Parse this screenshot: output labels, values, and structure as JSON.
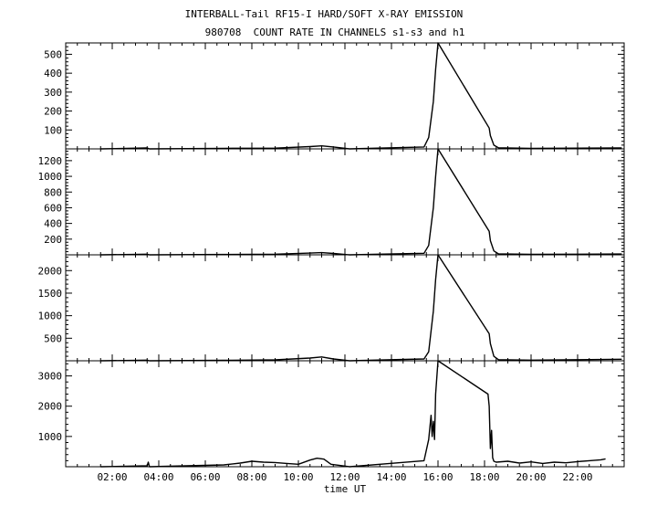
{
  "chart_data": {
    "type": "line",
    "title": "INTERBALL-Tail RF15-I HARD/SOFT X-RAY EMISSION",
    "subtitle": "980708  COUNT RATE IN CHANNELS s1-s3 and h1",
    "xlabel": "time UT",
    "x_unit": "hours UT",
    "xlim": [
      0,
      24
    ],
    "xticks": [
      2,
      4,
      6,
      8,
      10,
      12,
      14,
      16,
      18,
      20,
      22
    ],
    "xtick_labels": [
      "02:00",
      "04:00",
      "06:00",
      "08:00",
      "10:00",
      "12:00",
      "14:00",
      "16:00",
      "18:00",
      "20:00",
      "22:00"
    ],
    "grid": false,
    "panels": [
      {
        "name": "s1",
        "ylim": [
          0,
          560
        ],
        "yticks": [
          100,
          200,
          300,
          400,
          500
        ],
        "ytick_labels": [
          "100",
          "200",
          "300",
          "400",
          "500"
        ],
        "series": [
          {
            "x": [
              1.5,
              3.5,
              3.6,
              6.8,
              9.0,
              10.5,
              11.0,
              11.5,
              12.2,
              15.4,
              15.6,
              15.8,
              15.9,
              16.0,
              18.2,
              18.25,
              18.4,
              18.6,
              20.0,
              22.0,
              23.9
            ],
            "y": [
              0,
              5,
              0,
              3,
              4,
              12,
              16,
              10,
              0,
              10,
              60,
              250,
              420,
              560,
              110,
              70,
              20,
              6,
              3,
              4,
              5
            ]
          }
        ]
      },
      {
        "name": "s2",
        "ylim": [
          0,
          1350
        ],
        "yticks": [
          200,
          400,
          600,
          800,
          1000,
          1200
        ],
        "ytick_labels": [
          "200",
          "400",
          "600",
          "800",
          "1000",
          "1200"
        ],
        "series": [
          {
            "x": [
              1.5,
              3.5,
              3.6,
              6.8,
              9.0,
              10.5,
              11.0,
              11.5,
              12.2,
              15.4,
              15.6,
              15.8,
              15.9,
              16.0,
              18.2,
              18.25,
              18.4,
              18.6,
              20.0,
              22.0,
              23.9
            ],
            "y": [
              0,
              8,
              0,
              5,
              8,
              22,
              28,
              18,
              0,
              20,
              120,
              600,
              1000,
              1350,
              300,
              180,
              50,
              12,
              6,
              8,
              10
            ]
          }
        ]
      },
      {
        "name": "s3",
        "ylim": [
          0,
          2350
        ],
        "yticks": [
          500,
          1000,
          1500,
          2000
        ],
        "ytick_labels": [
          "500",
          "1000",
          "1500",
          "2000"
        ],
        "series": [
          {
            "x": [
              1.5,
              3.5,
              3.6,
              6.8,
              9.0,
              10.5,
              11.0,
              11.5,
              12.2,
              15.4,
              15.6,
              15.8,
              15.9,
              16.0,
              18.2,
              18.25,
              18.4,
              18.6,
              20.0,
              22.0,
              23.9
            ],
            "y": [
              0,
              15,
              0,
              10,
              20,
              60,
              85,
              40,
              0,
              40,
              200,
              1100,
              1800,
              2350,
              600,
              380,
              100,
              25,
              15,
              25,
              35
            ]
          }
        ]
      },
      {
        "name": "h1",
        "ylim": [
          0,
          3500
        ],
        "yticks": [
          1000,
          2000,
          3000
        ],
        "ytick_labels": [
          "1000",
          "2000",
          "3000"
        ],
        "series": [
          {
            "x": [
              1.5,
              3.5,
              3.55,
              3.6,
              6.8,
              7.5,
              8.0,
              8.5,
              9.0,
              9.5,
              10.0,
              10.5,
              10.8,
              11.1,
              11.4,
              12.2,
              15.4,
              15.6,
              15.7,
              15.75,
              15.8,
              15.85,
              15.9,
              16.0,
              18.15,
              18.2,
              18.25,
              18.3,
              18.35,
              18.4,
              18.5,
              19.0,
              19.5,
              20.0,
              20.5,
              21.0,
              21.5,
              22.0,
              22.5,
              23.0,
              23.2
            ],
            "y": [
              0,
              30,
              150,
              0,
              60,
              120,
              180,
              150,
              140,
              110,
              80,
              220,
              280,
              250,
              80,
              0,
              200,
              900,
              1700,
              1000,
              1500,
              900,
              2400,
              3500,
              2400,
              2000,
              600,
              1200,
              300,
              180,
              150,
              180,
              120,
              160,
              110,
              150,
              130,
              170,
              200,
              230,
              260
            ]
          }
        ]
      }
    ]
  }
}
